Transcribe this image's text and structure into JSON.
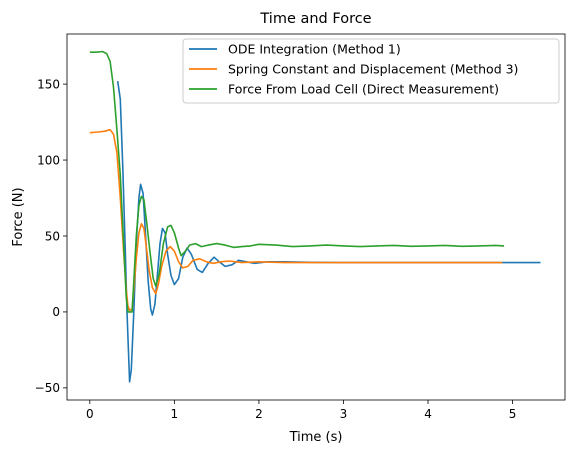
{
  "chart_data": {
    "type": "line",
    "title": "Time and Force",
    "xlabel": "Time (s)",
    "ylabel": "Force (N)",
    "xlim": [
      -0.27,
      5.62
    ],
    "ylim": [
      -58,
      183
    ],
    "xticks": [
      0,
      1,
      2,
      3,
      4,
      5
    ],
    "yticks": [
      -50,
      0,
      50,
      100,
      150
    ],
    "grid": false,
    "legend_position": "top-right",
    "series": [
      {
        "name": "ODE Integration (Method 1)",
        "color": "#1f77b4",
        "points": [
          [
            0.33,
            152
          ],
          [
            0.36,
            140
          ],
          [
            0.39,
            95
          ],
          [
            0.42,
            40
          ],
          [
            0.44,
            0
          ],
          [
            0.46,
            -30
          ],
          [
            0.47,
            -46
          ],
          [
            0.49,
            -38
          ],
          [
            0.52,
            0
          ],
          [
            0.55,
            45
          ],
          [
            0.58,
            75
          ],
          [
            0.6,
            84
          ],
          [
            0.63,
            78
          ],
          [
            0.66,
            50
          ],
          [
            0.69,
            20
          ],
          [
            0.72,
            2
          ],
          [
            0.74,
            -2
          ],
          [
            0.77,
            5
          ],
          [
            0.8,
            25
          ],
          [
            0.83,
            45
          ],
          [
            0.86,
            55
          ],
          [
            0.89,
            52
          ],
          [
            0.92,
            38
          ],
          [
            0.96,
            24
          ],
          [
            1.0,
            18
          ],
          [
            1.05,
            22
          ],
          [
            1.1,
            36
          ],
          [
            1.15,
            42
          ],
          [
            1.2,
            38
          ],
          [
            1.27,
            28
          ],
          [
            1.33,
            26
          ],
          [
            1.4,
            32
          ],
          [
            1.47,
            36
          ],
          [
            1.53,
            33
          ],
          [
            1.6,
            30
          ],
          [
            1.68,
            31
          ],
          [
            1.76,
            34
          ],
          [
            1.85,
            33
          ],
          [
            1.95,
            32
          ],
          [
            2.1,
            33
          ],
          [
            2.3,
            33
          ],
          [
            2.6,
            32.7
          ],
          [
            3.0,
            32.5
          ],
          [
            3.5,
            32.5
          ],
          [
            4.0,
            32.5
          ],
          [
            4.5,
            32.5
          ],
          [
            5.0,
            32.5
          ],
          [
            5.33,
            32.5
          ]
        ]
      },
      {
        "name": "Spring Constant and Displacement (Method 3)",
        "color": "#ff7f0e",
        "points": [
          [
            0.0,
            118
          ],
          [
            0.1,
            118.5
          ],
          [
            0.18,
            119
          ],
          [
            0.24,
            120
          ],
          [
            0.28,
            117
          ],
          [
            0.32,
            105
          ],
          [
            0.36,
            75
          ],
          [
            0.4,
            40
          ],
          [
            0.43,
            15
          ],
          [
            0.45,
            4
          ],
          [
            0.47,
            1
          ],
          [
            0.5,
            2
          ],
          [
            0.52,
            15
          ],
          [
            0.55,
            35
          ],
          [
            0.58,
            52
          ],
          [
            0.61,
            58
          ],
          [
            0.64,
            55
          ],
          [
            0.67,
            42
          ],
          [
            0.7,
            28
          ],
          [
            0.74,
            16
          ],
          [
            0.78,
            12
          ],
          [
            0.81,
            18
          ],
          [
            0.85,
            30
          ],
          [
            0.9,
            40
          ],
          [
            0.95,
            43
          ],
          [
            1.0,
            40
          ],
          [
            1.05,
            33
          ],
          [
            1.1,
            29
          ],
          [
            1.16,
            30
          ],
          [
            1.22,
            34
          ],
          [
            1.3,
            35
          ],
          [
            1.38,
            33
          ],
          [
            1.46,
            32
          ],
          [
            1.55,
            33
          ],
          [
            1.65,
            33.5
          ],
          [
            1.8,
            32.5
          ],
          [
            2.0,
            33
          ],
          [
            2.3,
            32.5
          ],
          [
            2.7,
            32.5
          ],
          [
            3.0,
            32.5
          ],
          [
            3.5,
            32.5
          ],
          [
            4.0,
            32.5
          ],
          [
            4.5,
            32.5
          ],
          [
            4.88,
            32.5
          ]
        ]
      },
      {
        "name": "Force From Load Cell (Direct Measurement)",
        "color": "#2ca02c",
        "points": [
          [
            0.0,
            171
          ],
          [
            0.08,
            171
          ],
          [
            0.15,
            171.5
          ],
          [
            0.2,
            170
          ],
          [
            0.24,
            165
          ],
          [
            0.28,
            148
          ],
          [
            0.32,
            120
          ],
          [
            0.36,
            90
          ],
          [
            0.4,
            45
          ],
          [
            0.43,
            10
          ],
          [
            0.45,
            0
          ],
          [
            0.5,
            0
          ],
          [
            0.52,
            20
          ],
          [
            0.55,
            50
          ],
          [
            0.58,
            70
          ],
          [
            0.61,
            76
          ],
          [
            0.64,
            74
          ],
          [
            0.67,
            60
          ],
          [
            0.71,
            40
          ],
          [
            0.75,
            22
          ],
          [
            0.78,
            17
          ],
          [
            0.82,
            25
          ],
          [
            0.87,
            45
          ],
          [
            0.92,
            56
          ],
          [
            0.96,
            57
          ],
          [
            1.0,
            52
          ],
          [
            1.05,
            42
          ],
          [
            1.08,
            37
          ],
          [
            1.13,
            40
          ],
          [
            1.18,
            44
          ],
          [
            1.25,
            45
          ],
          [
            1.32,
            43
          ],
          [
            1.4,
            44
          ],
          [
            1.5,
            45
          ],
          [
            1.6,
            44
          ],
          [
            1.7,
            42.5
          ],
          [
            1.8,
            43
          ],
          [
            1.9,
            43.5
          ],
          [
            2.0,
            44.5
          ],
          [
            2.2,
            44
          ],
          [
            2.4,
            43
          ],
          [
            2.6,
            43.5
          ],
          [
            2.8,
            44
          ],
          [
            3.0,
            43.5
          ],
          [
            3.2,
            43
          ],
          [
            3.4,
            43.5
          ],
          [
            3.6,
            43.8
          ],
          [
            3.8,
            43.2
          ],
          [
            4.0,
            43.5
          ],
          [
            4.2,
            43.8
          ],
          [
            4.4,
            43.2
          ],
          [
            4.6,
            43.5
          ],
          [
            4.8,
            43.8
          ],
          [
            4.9,
            43.5
          ]
        ]
      }
    ]
  }
}
